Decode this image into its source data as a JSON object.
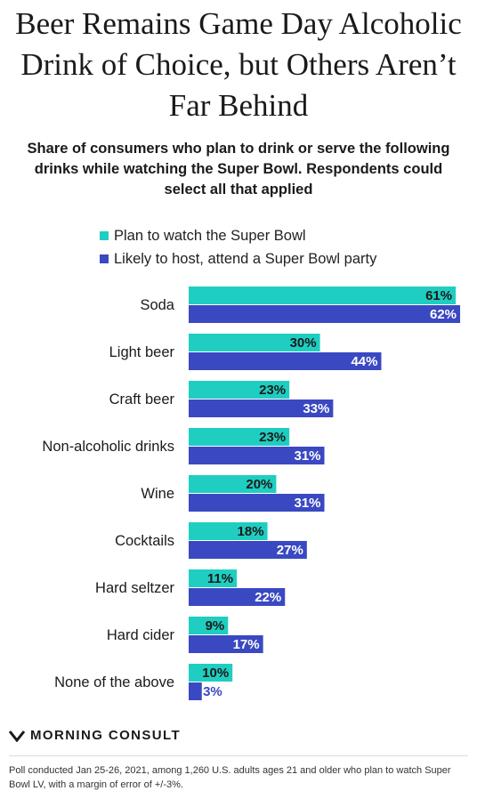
{
  "title": "Beer Remains Game Day Alcoholic Drink of Choice, but Others Aren’t Far Behind",
  "subtitle": "Share of consumers who plan to drink or serve the following drinks while watching the Super Bowl. Respondents could select all that applied",
  "colors": {
    "series1": "#1fcec1",
    "series2": "#3a49c2",
    "label_on_light": "#1a1a1a",
    "label_on_dark": "#ffffff",
    "label_outside": "#3a49c2"
  },
  "chart_data": {
    "type": "bar",
    "orientation": "horizontal",
    "title": "Beer Remains Game Day Alcoholic Drink of Choice, but Others Aren’t Far Behind",
    "subtitle": "Share of consumers who plan to drink or serve the following drinks while watching the Super Bowl. Respondents could select all that applied",
    "categories": [
      "Soda",
      "Light beer",
      "Craft beer",
      "Non-alcoholic drinks",
      "Wine",
      "Cocktails",
      "Hard seltzer",
      "Hard cider",
      "None of the above"
    ],
    "series": [
      {
        "name": "Plan to watch the Super Bowl",
        "values": [
          61,
          30,
          23,
          23,
          20,
          18,
          11,
          9,
          10
        ]
      },
      {
        "name": "Likely to host, attend a Super Bowl party",
        "values": [
          62,
          44,
          33,
          31,
          31,
          27,
          22,
          17,
          3
        ]
      }
    ],
    "value_labels": [
      [
        "61%",
        "30%",
        "23%",
        "23%",
        "20%",
        "18%",
        "11%",
        "9%",
        "10%"
      ],
      [
        "62%",
        "44%",
        "33%",
        "31%",
        "31%",
        "27%",
        "22%",
        "17%",
        "3%"
      ]
    ],
    "unit": "%",
    "legend_position": "top",
    "grid": false
  },
  "logo": {
    "text": "MORNING CONSULT"
  },
  "footnote": "Poll conducted Jan 25-26, 2021, among 1,260 U.S. adults ages 21 and older who plan to watch Super Bowl LV, with a margin of error of +/-3%."
}
